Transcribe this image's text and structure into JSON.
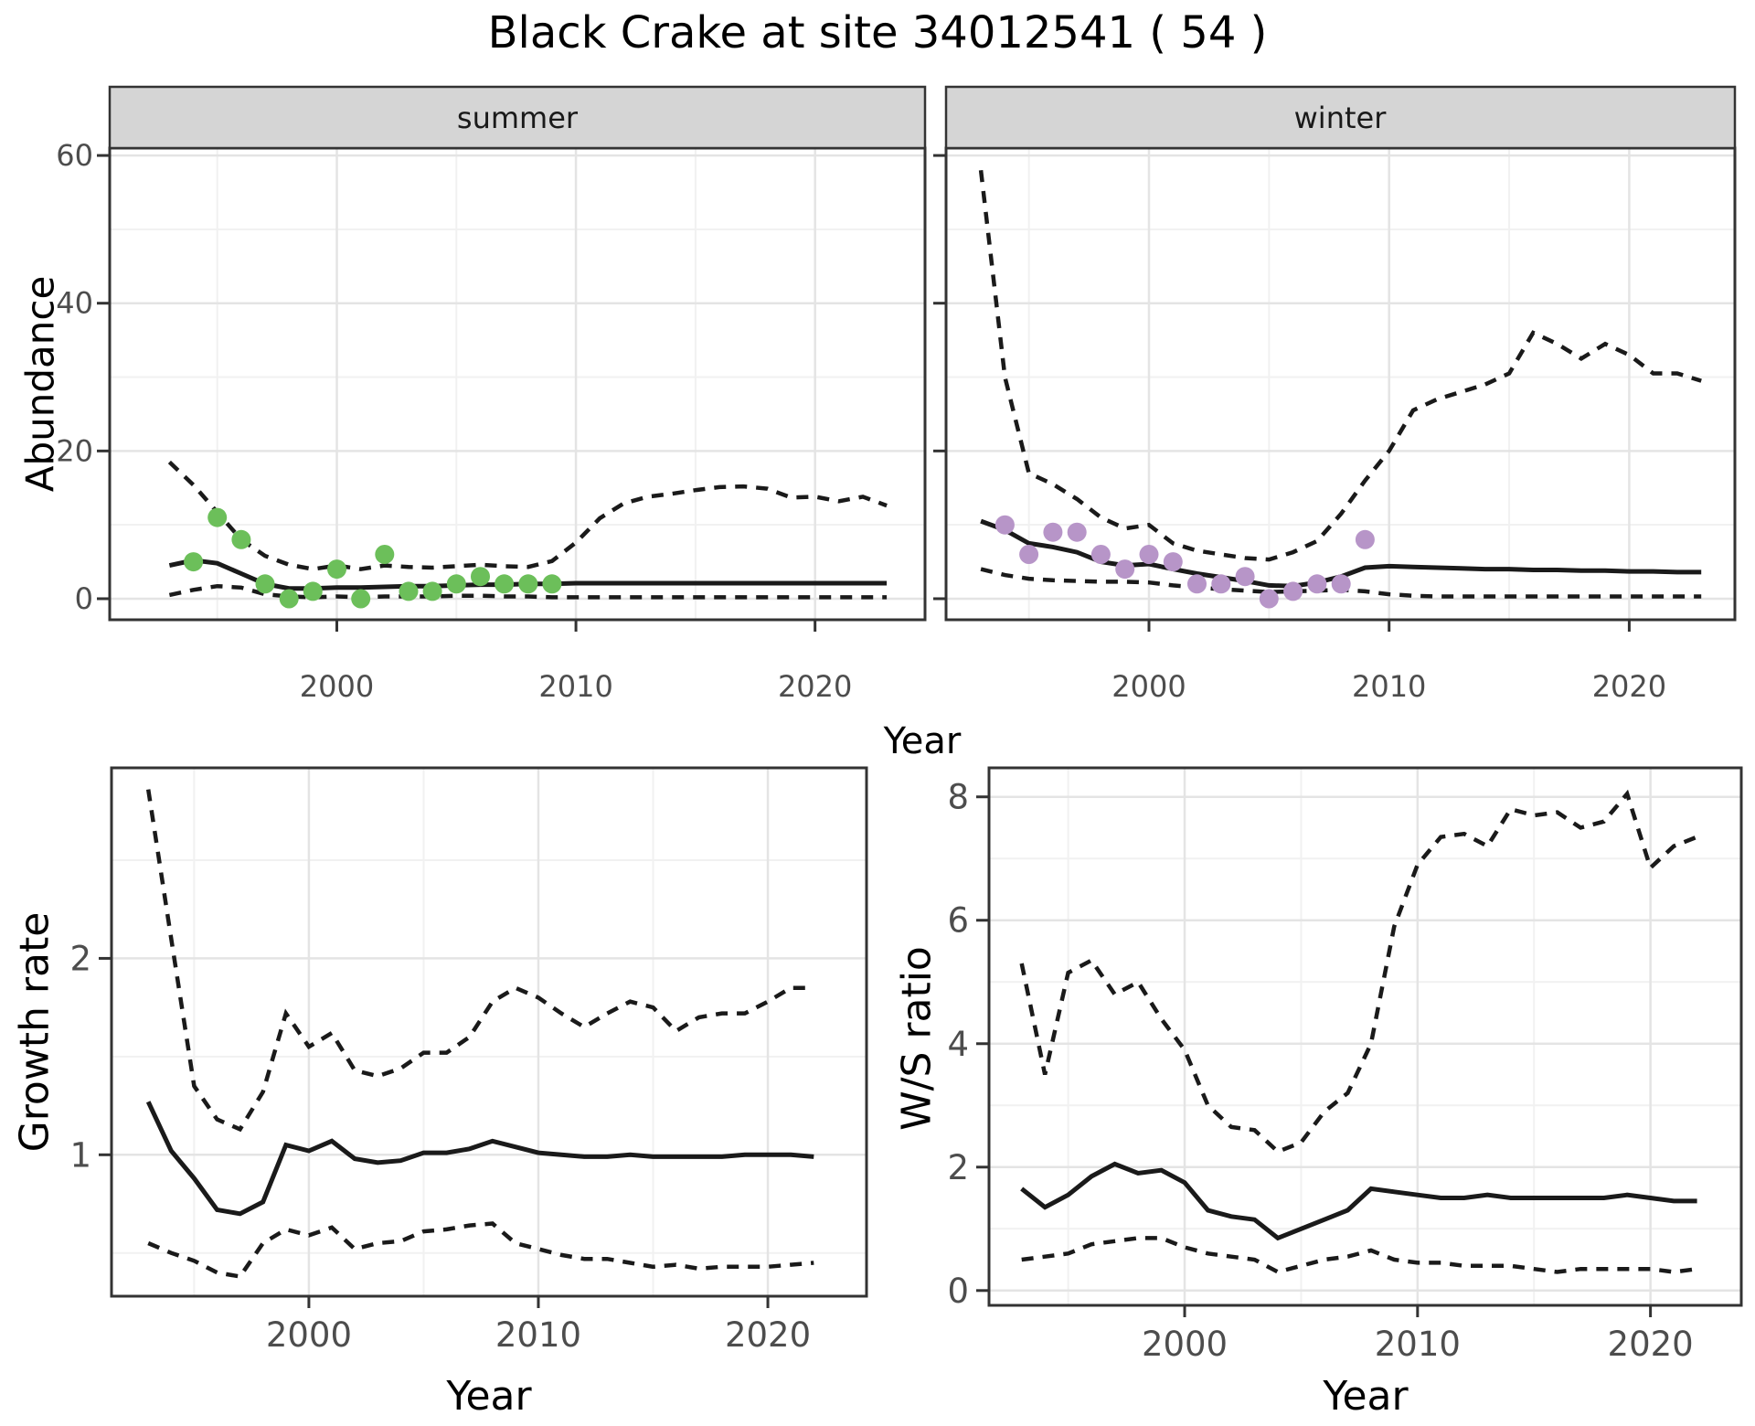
{
  "title": "Black Crake at site 34012541 ( 54 )",
  "colors": {
    "summer_points": "#6cbf5a",
    "winter_points": "#b795c8",
    "line": "#1a1a1a",
    "grid_major": "#e4e4e4",
    "grid_minor": "#f1f1f1",
    "strip_bg": "#d5d5d5",
    "panel_border": "#333333",
    "tick_label": "#4d4d4d",
    "panel_bg": "#ffffff"
  },
  "axis_titles": {
    "top_x": "Year",
    "top_y": "Abundance",
    "bottom_left_x": "Year",
    "bottom_left_y": "Growth rate",
    "bottom_right_x": "Year",
    "bottom_right_y": "W/S ratio"
  },
  "chart_data": [
    {
      "type": "line",
      "facet": "summer",
      "xlabel": "Year",
      "ylabel": "Abundance",
      "xlim": [
        1990.5,
        2024.6
      ],
      "ylim": [
        -2.85,
        61.0
      ],
      "x_major_ticks": [
        2000,
        2010,
        2020
      ],
      "x_minor_ticks": [
        1995,
        2005,
        2015
      ],
      "y_major_ticks": [
        0,
        20,
        40,
        60
      ],
      "y_minor_ticks": [
        10,
        30,
        50
      ],
      "years": [
        1993,
        1994,
        1995,
        1996,
        1997,
        1998,
        1999,
        2000,
        2001,
        2002,
        2003,
        2004,
        2005,
        2006,
        2007,
        2008,
        2009,
        2010,
        2011,
        2012,
        2013,
        2014,
        2015,
        2016,
        2017,
        2018,
        2019,
        2020,
        2021,
        2022,
        2023
      ],
      "series": [
        {
          "name": "upper_ci",
          "linetype": "dashed",
          "values": [
            18.5,
            15.4,
            11.7,
            8.0,
            5.8,
            4.6,
            4.0,
            4.5,
            4.0,
            4.5,
            4.3,
            4.2,
            4.4,
            4.6,
            4.4,
            4.3,
            5.1,
            7.6,
            10.9,
            12.9,
            13.8,
            14.2,
            14.7,
            15.1,
            15.2,
            14.9,
            13.7,
            13.8,
            13.2,
            13.8,
            12.6
          ]
        },
        {
          "name": "median",
          "linetype": "solid",
          "values": [
            4.5,
            5.2,
            4.8,
            3.4,
            2.0,
            1.4,
            1.4,
            1.5,
            1.5,
            1.6,
            1.7,
            1.7,
            1.8,
            1.9,
            1.9,
            2.0,
            2.0,
            2.1,
            2.1,
            2.1,
            2.1,
            2.1,
            2.1,
            2.1,
            2.1,
            2.1,
            2.1,
            2.1,
            2.1,
            2.1,
            2.1
          ]
        },
        {
          "name": "lower_ci",
          "linetype": "dashed",
          "values": [
            0.5,
            1.2,
            1.7,
            1.5,
            0.6,
            0.3,
            0.2,
            0.3,
            0.2,
            0.3,
            0.3,
            0.3,
            0.4,
            0.4,
            0.3,
            0.3,
            0.2,
            0.2,
            0.2,
            0.2,
            0.2,
            0.2,
            0.2,
            0.2,
            0.2,
            0.2,
            0.2,
            0.2,
            0.2,
            0.2,
            0.2
          ]
        }
      ],
      "points": {
        "name": "observed_counts_summer",
        "color_key": "summer_points",
        "years": [
          1994,
          1995,
          1996,
          1997,
          1998,
          1999,
          2000,
          2001,
          2002,
          2003,
          2004,
          2005,
          2006,
          2007,
          2008,
          2009
        ],
        "values": [
          5,
          11,
          8,
          2,
          0,
          1,
          4,
          0,
          6,
          1,
          1,
          2,
          3,
          2,
          2,
          2
        ]
      }
    },
    {
      "type": "line",
      "facet": "winter",
      "xlabel": "Year",
      "ylabel": "Abundance",
      "xlim": [
        1991.55,
        2024.4
      ],
      "ylim": [
        -2.85,
        61.0
      ],
      "x_major_ticks": [
        2000,
        2010,
        2020
      ],
      "x_minor_ticks": [
        1995,
        2005,
        2015
      ],
      "y_major_ticks": [
        0,
        20,
        40,
        60
      ],
      "y_minor_ticks": [
        10,
        30,
        50
      ],
      "years": [
        1993,
        1994,
        1995,
        1996,
        1997,
        1998,
        1999,
        2000,
        2001,
        2002,
        2003,
        2004,
        2005,
        2006,
        2007,
        2008,
        2009,
        2010,
        2011,
        2012,
        2013,
        2014,
        2015,
        2016,
        2017,
        2018,
        2019,
        2020,
        2021,
        2022,
        2023
      ],
      "series": [
        {
          "name": "upper_ci",
          "linetype": "dashed",
          "values": [
            58,
            30,
            17,
            15.5,
            13.5,
            11,
            9.5,
            10,
            7.5,
            6.5,
            6,
            5.5,
            5.3,
            6.3,
            7.8,
            11.5,
            16,
            20,
            25.5,
            27,
            28,
            29,
            30.5,
            36,
            34.5,
            32.5,
            34.5,
            33,
            30.5,
            30.5,
            29.5
          ]
        },
        {
          "name": "median",
          "linetype": "solid",
          "values": [
            10.5,
            9.3,
            7.5,
            7.0,
            6.3,
            5.0,
            4.5,
            4.7,
            4.0,
            3.4,
            2.9,
            2.4,
            1.8,
            1.7,
            2.2,
            3.0,
            4.2,
            4.4,
            4.3,
            4.2,
            4.1,
            4.0,
            4.0,
            3.9,
            3.9,
            3.8,
            3.8,
            3.7,
            3.7,
            3.6,
            3.6
          ]
        },
        {
          "name": "lower_ci",
          "linetype": "dashed",
          "values": [
            4.0,
            3.2,
            2.7,
            2.5,
            2.4,
            2.3,
            2.3,
            2.2,
            1.8,
            1.5,
            1.3,
            1.1,
            0.9,
            1.0,
            1.1,
            1.2,
            1.0,
            0.6,
            0.4,
            0.3,
            0.3,
            0.3,
            0.3,
            0.3,
            0.3,
            0.3,
            0.3,
            0.3,
            0.3,
            0.3,
            0.3
          ]
        }
      ],
      "points": {
        "name": "observed_counts_winter",
        "color_key": "winter_points",
        "years": [
          1994,
          1995,
          1996,
          1997,
          1998,
          1999,
          2000,
          2001,
          2002,
          2003,
          2004,
          2005,
          2006,
          2007,
          2008,
          2009
        ],
        "values": [
          10,
          6,
          9,
          9,
          6,
          4,
          6,
          5,
          2,
          2,
          3,
          0,
          1,
          2,
          2,
          8
        ]
      }
    },
    {
      "type": "line",
      "facet": null,
      "xlabel": "Year",
      "ylabel": "Growth rate",
      "xlim": [
        1991.4,
        2024.3
      ],
      "ylim": [
        0.28,
        2.97
      ],
      "x_major_ticks": [
        2000,
        2010,
        2020
      ],
      "x_minor_ticks": [
        1995,
        2005,
        2015
      ],
      "y_major_ticks": [
        1,
        2
      ],
      "y_minor_ticks": [
        0.5,
        1.5,
        2.5
      ],
      "years": [
        1993,
        1994,
        1995,
        1996,
        1997,
        1998,
        1999,
        2000,
        2001,
        2002,
        2003,
        2004,
        2005,
        2006,
        2007,
        2008,
        2009,
        2010,
        2011,
        2012,
        2013,
        2014,
        2015,
        2016,
        2017,
        2018,
        2019,
        2020,
        2021,
        2022
      ],
      "series": [
        {
          "name": "upper_ci",
          "linetype": "dashed",
          "values": [
            2.86,
            2.1,
            1.35,
            1.18,
            1.13,
            1.32,
            1.72,
            1.55,
            1.62,
            1.43,
            1.4,
            1.44,
            1.52,
            1.52,
            1.6,
            1.78,
            1.85,
            1.8,
            1.72,
            1.65,
            1.72,
            1.78,
            1.75,
            1.63,
            1.7,
            1.72,
            1.72,
            1.78,
            1.85,
            1.85
          ]
        },
        {
          "name": "median",
          "linetype": "solid",
          "values": [
            1.27,
            1.02,
            0.88,
            0.72,
            0.7,
            0.76,
            1.05,
            1.02,
            1.07,
            0.98,
            0.96,
            0.97,
            1.01,
            1.01,
            1.03,
            1.07,
            1.04,
            1.01,
            1.0,
            0.99,
            0.99,
            1.0,
            0.99,
            0.99,
            0.99,
            0.99,
            1.0,
            1.0,
            1.0,
            0.99
          ]
        },
        {
          "name": "lower_ci",
          "linetype": "dashed",
          "values": [
            0.55,
            0.5,
            0.46,
            0.4,
            0.38,
            0.55,
            0.62,
            0.59,
            0.63,
            0.52,
            0.55,
            0.56,
            0.61,
            0.62,
            0.64,
            0.65,
            0.55,
            0.52,
            0.49,
            0.47,
            0.47,
            0.45,
            0.43,
            0.44,
            0.42,
            0.43,
            0.43,
            0.43,
            0.44,
            0.45
          ]
        }
      ],
      "points": null
    },
    {
      "type": "line",
      "facet": null,
      "xlabel": "Year",
      "ylabel": "W/S ratio",
      "xlim": [
        1991.6,
        2023.9
      ],
      "ylim": [
        -0.24,
        8.47
      ],
      "x_major_ticks": [
        2000,
        2010,
        2020
      ],
      "x_minor_ticks": [
        1995,
        2005,
        2015
      ],
      "y_major_ticks": [
        0,
        2,
        4,
        6,
        8
      ],
      "y_minor_ticks": [
        1,
        3,
        5,
        7
      ],
      "years": [
        1993,
        1994,
        1995,
        1996,
        1997,
        1998,
        1999,
        2000,
        2001,
        2002,
        2003,
        2004,
        2005,
        2006,
        2007,
        2008,
        2009,
        2010,
        2011,
        2012,
        2013,
        2014,
        2015,
        2016,
        2017,
        2018,
        2019,
        2020,
        2021,
        2022
      ],
      "series": [
        {
          "name": "upper_ci",
          "linetype": "dashed",
          "values": [
            5.3,
            3.5,
            5.15,
            5.35,
            4.8,
            5.0,
            4.4,
            3.9,
            3.0,
            2.65,
            2.6,
            2.25,
            2.4,
            2.9,
            3.2,
            4.0,
            5.9,
            6.9,
            7.35,
            7.4,
            7.2,
            7.8,
            7.7,
            7.75,
            7.5,
            7.6,
            8.05,
            6.85,
            7.2,
            7.35
          ]
        },
        {
          "name": "median",
          "linetype": "solid",
          "values": [
            1.65,
            1.35,
            1.55,
            1.85,
            2.05,
            1.9,
            1.95,
            1.75,
            1.3,
            1.2,
            1.15,
            0.85,
            1.0,
            1.15,
            1.3,
            1.65,
            1.6,
            1.55,
            1.5,
            1.5,
            1.55,
            1.5,
            1.5,
            1.5,
            1.5,
            1.5,
            1.55,
            1.5,
            1.45,
            1.45
          ]
        },
        {
          "name": "lower_ci",
          "linetype": "dashed",
          "values": [
            0.5,
            0.55,
            0.6,
            0.75,
            0.8,
            0.85,
            0.85,
            0.7,
            0.6,
            0.55,
            0.5,
            0.3,
            0.4,
            0.5,
            0.55,
            0.65,
            0.5,
            0.45,
            0.45,
            0.4,
            0.4,
            0.4,
            0.35,
            0.3,
            0.35,
            0.35,
            0.35,
            0.35,
            0.3,
            0.35
          ]
        }
      ],
      "points": null
    }
  ]
}
